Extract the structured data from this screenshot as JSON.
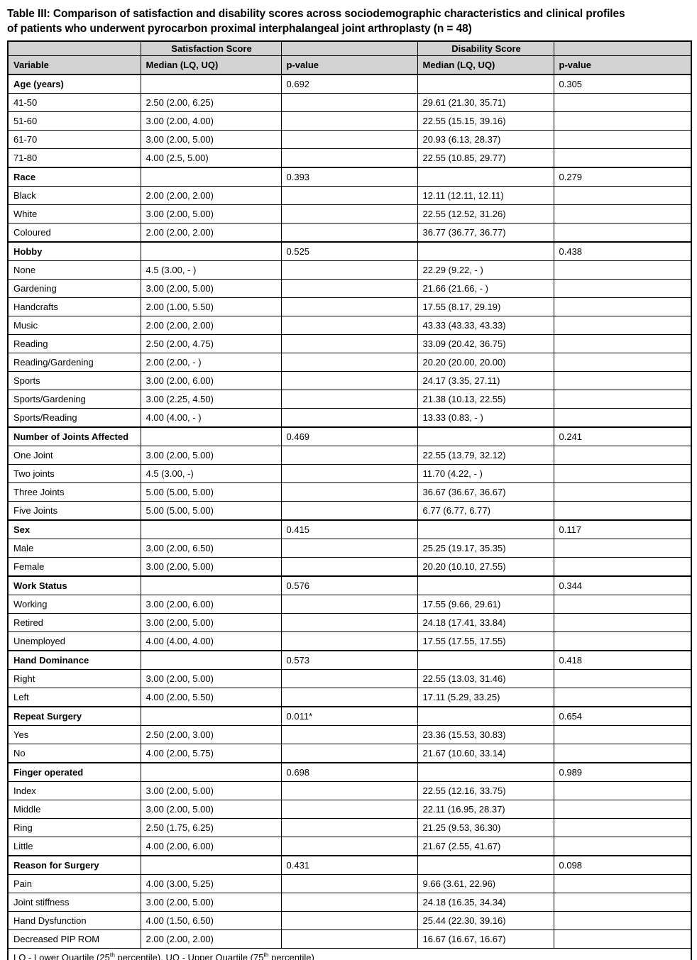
{
  "title": {
    "line1": "Table III: Comparison of satisfaction and disability scores across sociodemographic characteristics and clinical profiles",
    "line2": "of patients who underwent pyrocarbon proximal interphalangeal joint arthroplasty (n = 48)"
  },
  "colors": {
    "header_background": "#d2d2d2",
    "border": "#000000",
    "text": "#000000"
  },
  "table": {
    "group_headers": [
      "",
      "Satisfaction Score",
      "",
      "Disability Score",
      ""
    ],
    "column_headers": [
      "Variable",
      "Median (LQ, UQ)",
      "p-value",
      "Median (LQ, UQ)",
      "p-value"
    ],
    "rows": [
      {
        "type": "section",
        "cells": [
          "Age (years)",
          "",
          "0.692",
          "",
          "0.305"
        ]
      },
      {
        "type": "data",
        "cells": [
          "41-50",
          "2.50 (2.00, 6.25)",
          "",
          "29.61 (21.30, 35.71)",
          ""
        ]
      },
      {
        "type": "data",
        "cells": [
          "51-60",
          "3.00 (2.00, 4.00)",
          "",
          "22.55 (15.15, 39.16)",
          ""
        ]
      },
      {
        "type": "data",
        "cells": [
          "61-70",
          "3.00 (2.00, 5.00)",
          "",
          "20.93 (6.13, 28.37)",
          ""
        ]
      },
      {
        "type": "data",
        "cells": [
          "71-80",
          "4.00 (2.5, 5.00)",
          "",
          "22.55 (10.85, 29.77)",
          ""
        ]
      },
      {
        "type": "section",
        "cells": [
          "Race",
          "",
          "0.393",
          "",
          "0.279"
        ]
      },
      {
        "type": "data",
        "cells": [
          "Black",
          "2.00 (2.00, 2.00)",
          "",
          "12.11 (12.11, 12.11)",
          ""
        ]
      },
      {
        "type": "data",
        "cells": [
          "White",
          "3.00 (2.00, 5.00)",
          "",
          "22.55 (12.52, 31.26)",
          ""
        ]
      },
      {
        "type": "data",
        "cells": [
          "Coloured",
          "2.00 (2.00, 2.00)",
          "",
          "36.77 (36.77, 36.77)",
          ""
        ]
      },
      {
        "type": "section",
        "cells": [
          "Hobby",
          "",
          "0.525",
          "",
          "0.438"
        ]
      },
      {
        "type": "data",
        "cells": [
          "None",
          "4.5 (3.00, - )",
          "",
          "22.29 (9.22, - )",
          ""
        ]
      },
      {
        "type": "data",
        "cells": [
          "Gardening",
          "3.00 (2.00, 5.00)",
          "",
          "21.66 (21.66, - )",
          ""
        ]
      },
      {
        "type": "data",
        "cells": [
          "Handcrafts",
          "2.00 (1.00, 5.50)",
          "",
          "17.55 (8.17, 29.19)",
          ""
        ]
      },
      {
        "type": "data",
        "cells": [
          "Music",
          "2.00 (2.00, 2.00)",
          "",
          "43.33 (43.33, 43.33)",
          ""
        ]
      },
      {
        "type": "data",
        "cells": [
          "Reading",
          "2.50 (2.00, 4.75)",
          "",
          "33.09 (20.42, 36.75)",
          ""
        ]
      },
      {
        "type": "data",
        "cells": [
          "Reading/Gardening",
          "2.00 (2.00, - )",
          "",
          "20.20 (20.00, 20.00)",
          ""
        ]
      },
      {
        "type": "data",
        "cells": [
          "Sports",
          "3.00 (2.00, 6.00)",
          "",
          "24.17 (3.35, 27.11)",
          ""
        ]
      },
      {
        "type": "data",
        "cells": [
          "Sports/Gardening",
          "3.00 (2.25, 4.50)",
          "",
          "21.38 (10.13, 22.55)",
          ""
        ]
      },
      {
        "type": "data",
        "cells": [
          "Sports/Reading",
          "4.00 (4.00, - )",
          "",
          "13.33 (0.83, - )",
          ""
        ]
      },
      {
        "type": "section",
        "cells": [
          "Number of Joints Affected",
          "",
          "0.469",
          "",
          "0.241"
        ]
      },
      {
        "type": "data",
        "cells": [
          "One Joint",
          "3.00 (2.00, 5.00)",
          "",
          "22.55 (13.79, 32.12)",
          ""
        ]
      },
      {
        "type": "data",
        "cells": [
          "Two joints",
          "4.5 (3.00, -)",
          "",
          "11.70 (4.22, - )",
          ""
        ]
      },
      {
        "type": "data",
        "cells": [
          "Three Joints",
          "5.00 (5.00, 5.00)",
          "",
          "36.67 (36.67, 36.67)",
          ""
        ]
      },
      {
        "type": "data",
        "cells": [
          "Five Joints",
          "5.00 (5.00, 5.00)",
          "",
          "6.77 (6.77, 6.77)",
          ""
        ]
      },
      {
        "type": "section",
        "cells": [
          "Sex",
          "",
          "0.415",
          "",
          "0.117"
        ]
      },
      {
        "type": "data",
        "cells": [
          "Male",
          "3.00 (2.00, 6.50)",
          "",
          "25.25 (19.17, 35.35)",
          ""
        ]
      },
      {
        "type": "data",
        "cells": [
          "Female",
          "3.00 (2.00, 5.00)",
          "",
          "20.20 (10.10, 27.55)",
          ""
        ]
      },
      {
        "type": "section",
        "cells": [
          "Work Status",
          "",
          "0.576",
          "",
          "0.344"
        ]
      },
      {
        "type": "data",
        "cells": [
          "Working",
          "3.00 (2.00, 6.00)",
          "",
          "17.55 (9.66, 29.61)",
          ""
        ]
      },
      {
        "type": "data",
        "cells": [
          "Retired",
          "3.00 (2.00, 5.00)",
          "",
          "24.18 (17.41, 33.84)",
          ""
        ]
      },
      {
        "type": "data",
        "cells": [
          "Unemployed",
          "4.00 (4.00, 4.00)",
          "",
          "17.55 (17.55, 17.55)",
          ""
        ]
      },
      {
        "type": "section",
        "cells": [
          "Hand Dominance",
          "",
          "0.573",
          "",
          "0.418"
        ]
      },
      {
        "type": "data",
        "cells": [
          "Right",
          "3.00 (2.00, 5.00)",
          "",
          "22.55 (13.03, 31.46)",
          ""
        ]
      },
      {
        "type": "data",
        "cells": [
          "Left",
          "4.00 (2.00, 5.50)",
          "",
          "17.11 (5.29, 33.25)",
          ""
        ]
      },
      {
        "type": "section",
        "cells": [
          "Repeat Surgery",
          "",
          "0.011*",
          "",
          "0.654"
        ]
      },
      {
        "type": "data",
        "cells": [
          "Yes",
          "2.50 (2.00, 3.00)",
          "",
          "23.36 (15.53, 30.83)",
          ""
        ]
      },
      {
        "type": "data",
        "cells": [
          "No",
          "4.00 (2.00, 5.75)",
          "",
          "21.67 (10.60, 33.14)",
          ""
        ]
      },
      {
        "type": "section",
        "cells": [
          "Finger operated",
          "",
          "0.698",
          "",
          "0.989"
        ]
      },
      {
        "type": "data",
        "cells": [
          "Index",
          "3.00 (2.00, 5.00)",
          "",
          "22.55 (12.16, 33.75)",
          ""
        ]
      },
      {
        "type": "data",
        "cells": [
          "Middle",
          "3.00 (2.00, 5.00)",
          "",
          "22.11 (16.95, 28.37)",
          ""
        ]
      },
      {
        "type": "data",
        "cells": [
          "Ring",
          "2.50 (1.75, 6.25)",
          "",
          "21.25 (9.53, 36.30)",
          ""
        ]
      },
      {
        "type": "data",
        "cells": [
          "Little",
          "4.00 (2.00, 6.00)",
          "",
          "21.67 (2.55, 41.67)",
          ""
        ]
      },
      {
        "type": "section",
        "cells": [
          "Reason for Surgery",
          "",
          "0.431",
          "",
          "0.098"
        ]
      },
      {
        "type": "data",
        "cells": [
          "Pain",
          "4.00 (3.00, 5.25)",
          "",
          "9.66 (3.61, 22.96)",
          ""
        ]
      },
      {
        "type": "data",
        "cells": [
          "Joint stiffness",
          "3.00 (2.00, 5.00)",
          "",
          "24.18 (16.35, 34.34)",
          ""
        ]
      },
      {
        "type": "data",
        "cells": [
          "Hand Dysfunction",
          "4.00 (1.50, 6.50)",
          "",
          "25.44 (22.30, 39.16)",
          ""
        ]
      },
      {
        "type": "data",
        "cells": [
          "Decreased PIP ROM",
          "2.00 (2.00, 2.00)",
          "",
          "16.67 (16.67, 16.67)",
          ""
        ]
      }
    ],
    "footnote_parts": [
      "LQ - Lower Quartile (25",
      "th",
      " percentile), UQ - Upper Quartile (75",
      "th",
      " percentile)"
    ]
  }
}
